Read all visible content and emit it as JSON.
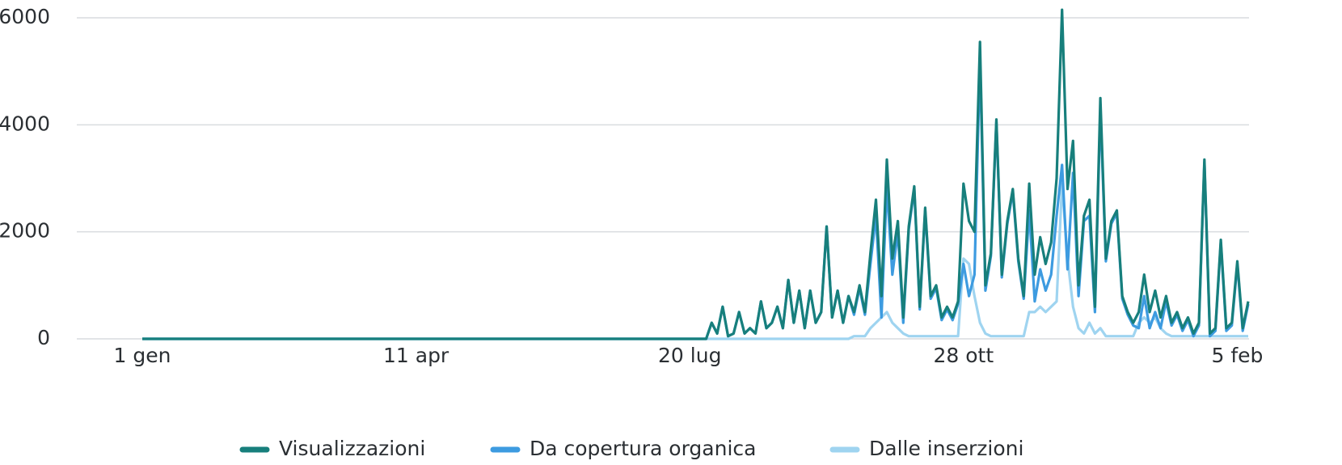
{
  "chart_data": {
    "type": "line",
    "x": [
      0,
      204,
      206,
      208,
      210,
      212,
      214,
      216,
      218,
      220,
      222,
      224,
      226,
      228,
      230,
      232,
      234,
      236,
      238,
      240,
      242,
      244,
      246,
      248,
      250,
      252,
      254,
      256,
      258,
      260,
      262,
      264,
      266,
      268,
      270,
      272,
      274,
      276,
      278,
      280,
      282,
      284,
      286,
      288,
      290,
      292,
      294,
      296,
      298,
      300,
      302,
      304,
      306,
      308,
      310,
      312,
      314,
      316,
      318,
      320,
      322,
      324,
      326,
      328,
      330,
      332,
      334,
      336,
      338,
      340,
      342,
      344,
      346,
      348,
      350,
      352,
      354,
      356,
      358,
      360,
      362,
      364,
      366,
      368,
      370,
      372,
      374,
      376,
      378,
      380,
      382,
      384,
      386,
      388,
      390,
      392,
      394,
      396,
      398,
      400,
      402,
      404
    ],
    "xlim": [
      0,
      404
    ],
    "xticks": [
      {
        "value": 0,
        "label": "1 gen"
      },
      {
        "value": 100,
        "label": "11 apr"
      },
      {
        "value": 200,
        "label": "20 lug"
      },
      {
        "value": 300,
        "label": "28 ott"
      },
      {
        "value": 400,
        "label": "5 feb"
      }
    ],
    "ylim": [
      0,
      6000
    ],
    "yticks": [
      0,
      2000,
      4000,
      6000
    ],
    "grid": true,
    "legend": "bottom",
    "series": [
      {
        "name": "Dalle inserzioni",
        "color": "#9fd4f0",
        "values": [
          0,
          0,
          0,
          0,
          0,
          0,
          0,
          0,
          0,
          0,
          0,
          0,
          0,
          0,
          0,
          0,
          0,
          0,
          0,
          0,
          0,
          0,
          0,
          0,
          0,
          0,
          0,
          0,
          0,
          50,
          50,
          50,
          200,
          300,
          400,
          500,
          300,
          200,
          100,
          50,
          50,
          50,
          50,
          50,
          50,
          50,
          50,
          50,
          50,
          1500,
          1400,
          800,
          300,
          100,
          50,
          50,
          50,
          50,
          50,
          50,
          50,
          500,
          500,
          600,
          500,
          600,
          700,
          2900,
          1500,
          600,
          200,
          100,
          300,
          100,
          200,
          50,
          50,
          50,
          50,
          50,
          50,
          300,
          400,
          300,
          400,
          200,
          100,
          50,
          50,
          50,
          50,
          50,
          50,
          50,
          50,
          50,
          50,
          50,
          50,
          50,
          50,
          50
        ]
      },
      {
        "name": "Da copertura organica",
        "color": "#3d9be0",
        "values": [
          0,
          0,
          0,
          300,
          100,
          600,
          50,
          100,
          500,
          100,
          200,
          100,
          700,
          200,
          300,
          600,
          200,
          1100,
          300,
          900,
          200,
          900,
          300,
          500,
          2100,
          400,
          900,
          300,
          800,
          450,
          950,
          450,
          1400,
          2300,
          400,
          2850,
          1200,
          2000,
          300,
          2050,
          2800,
          550,
          2400,
          750,
          950,
          350,
          550,
          350,
          650,
          1400,
          800,
          1200,
          5250,
          900,
          1550,
          4050,
          1150,
          2150,
          2750,
          1450,
          750,
          2400,
          700,
          1300,
          900,
          1200,
          2300,
          3250,
          1300,
          3100,
          800,
          2200,
          2300,
          500,
          4300,
          1450,
          2150,
          2350,
          750,
          450,
          250,
          200,
          800,
          200,
          500,
          200,
          700,
          250,
          450,
          150,
          350,
          50,
          250,
          3300,
          50,
          150,
          1800,
          150,
          250,
          1400,
          150,
          650
        ]
      },
      {
        "name": "Visualizzazioni",
        "color": "#177f7c",
        "values": [
          0,
          0,
          0,
          300,
          100,
          600,
          50,
          100,
          500,
          100,
          200,
          100,
          700,
          200,
          300,
          600,
          200,
          1100,
          300,
          900,
          200,
          900,
          300,
          500,
          2100,
          400,
          900,
          300,
          800,
          500,
          1000,
          500,
          1600,
          2600,
          800,
          3350,
          1500,
          2200,
          400,
          2100,
          2850,
          600,
          2450,
          800,
          1000,
          400,
          600,
          400,
          700,
          2900,
          2200,
          2000,
          5550,
          1000,
          1600,
          4100,
          1200,
          2200,
          2800,
          1500,
          800,
          2900,
          1200,
          1900,
          1400,
          1800,
          3000,
          6150,
          2800,
          3700,
          1000,
          2300,
          2600,
          600,
          4500,
          1500,
          2200,
          2400,
          800,
          500,
          300,
          500,
          1200,
          500,
          900,
          400,
          800,
          300,
          500,
          200,
          400,
          100,
          300,
          3350,
          100,
          200,
          1850,
          200,
          300,
          1450,
          200,
          700
        ]
      }
    ]
  }
}
